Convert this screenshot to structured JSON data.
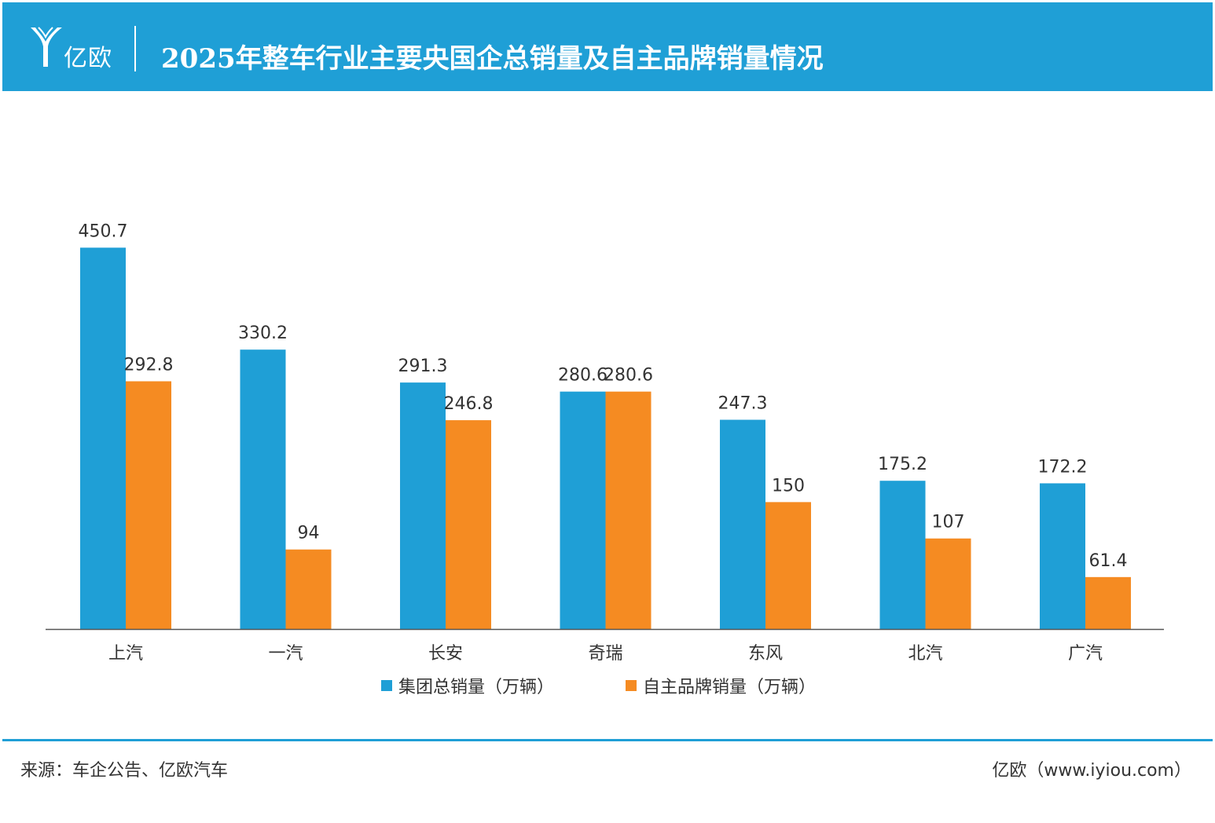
{
  "header": {
    "logo_text": "亿欧",
    "title": "2025年整车行业主要央国企总销量及自主品牌销量情况",
    "background_color": "#1f9fd6"
  },
  "chart_data": {
    "type": "bar",
    "categories": [
      "上汽",
      "一汽",
      "长安",
      "奇瑞",
      "东风",
      "北汽",
      "广汽"
    ],
    "series": [
      {
        "name": "集团总销量（万辆）",
        "color": "#1f9fd6",
        "values": [
          450.7,
          330.2,
          291.3,
          280.6,
          247.3,
          175.2,
          172.2
        ]
      },
      {
        "name": "自主品牌销量（万辆）",
        "color": "#f58b22",
        "values": [
          292.8,
          94,
          246.8,
          280.6,
          150,
          107,
          61.4
        ]
      }
    ],
    "title": "2025年整车行业主要央国企总销量及自主品牌销量情况",
    "xlabel": "",
    "ylabel": "",
    "ylim": [
      0,
      550
    ],
    "grid": false,
    "legend_position": "bottom",
    "data_labels": true
  },
  "footer": {
    "source": "来源：车企公告、亿欧汽车",
    "site": "亿欧（www.iyiou.com）"
  }
}
